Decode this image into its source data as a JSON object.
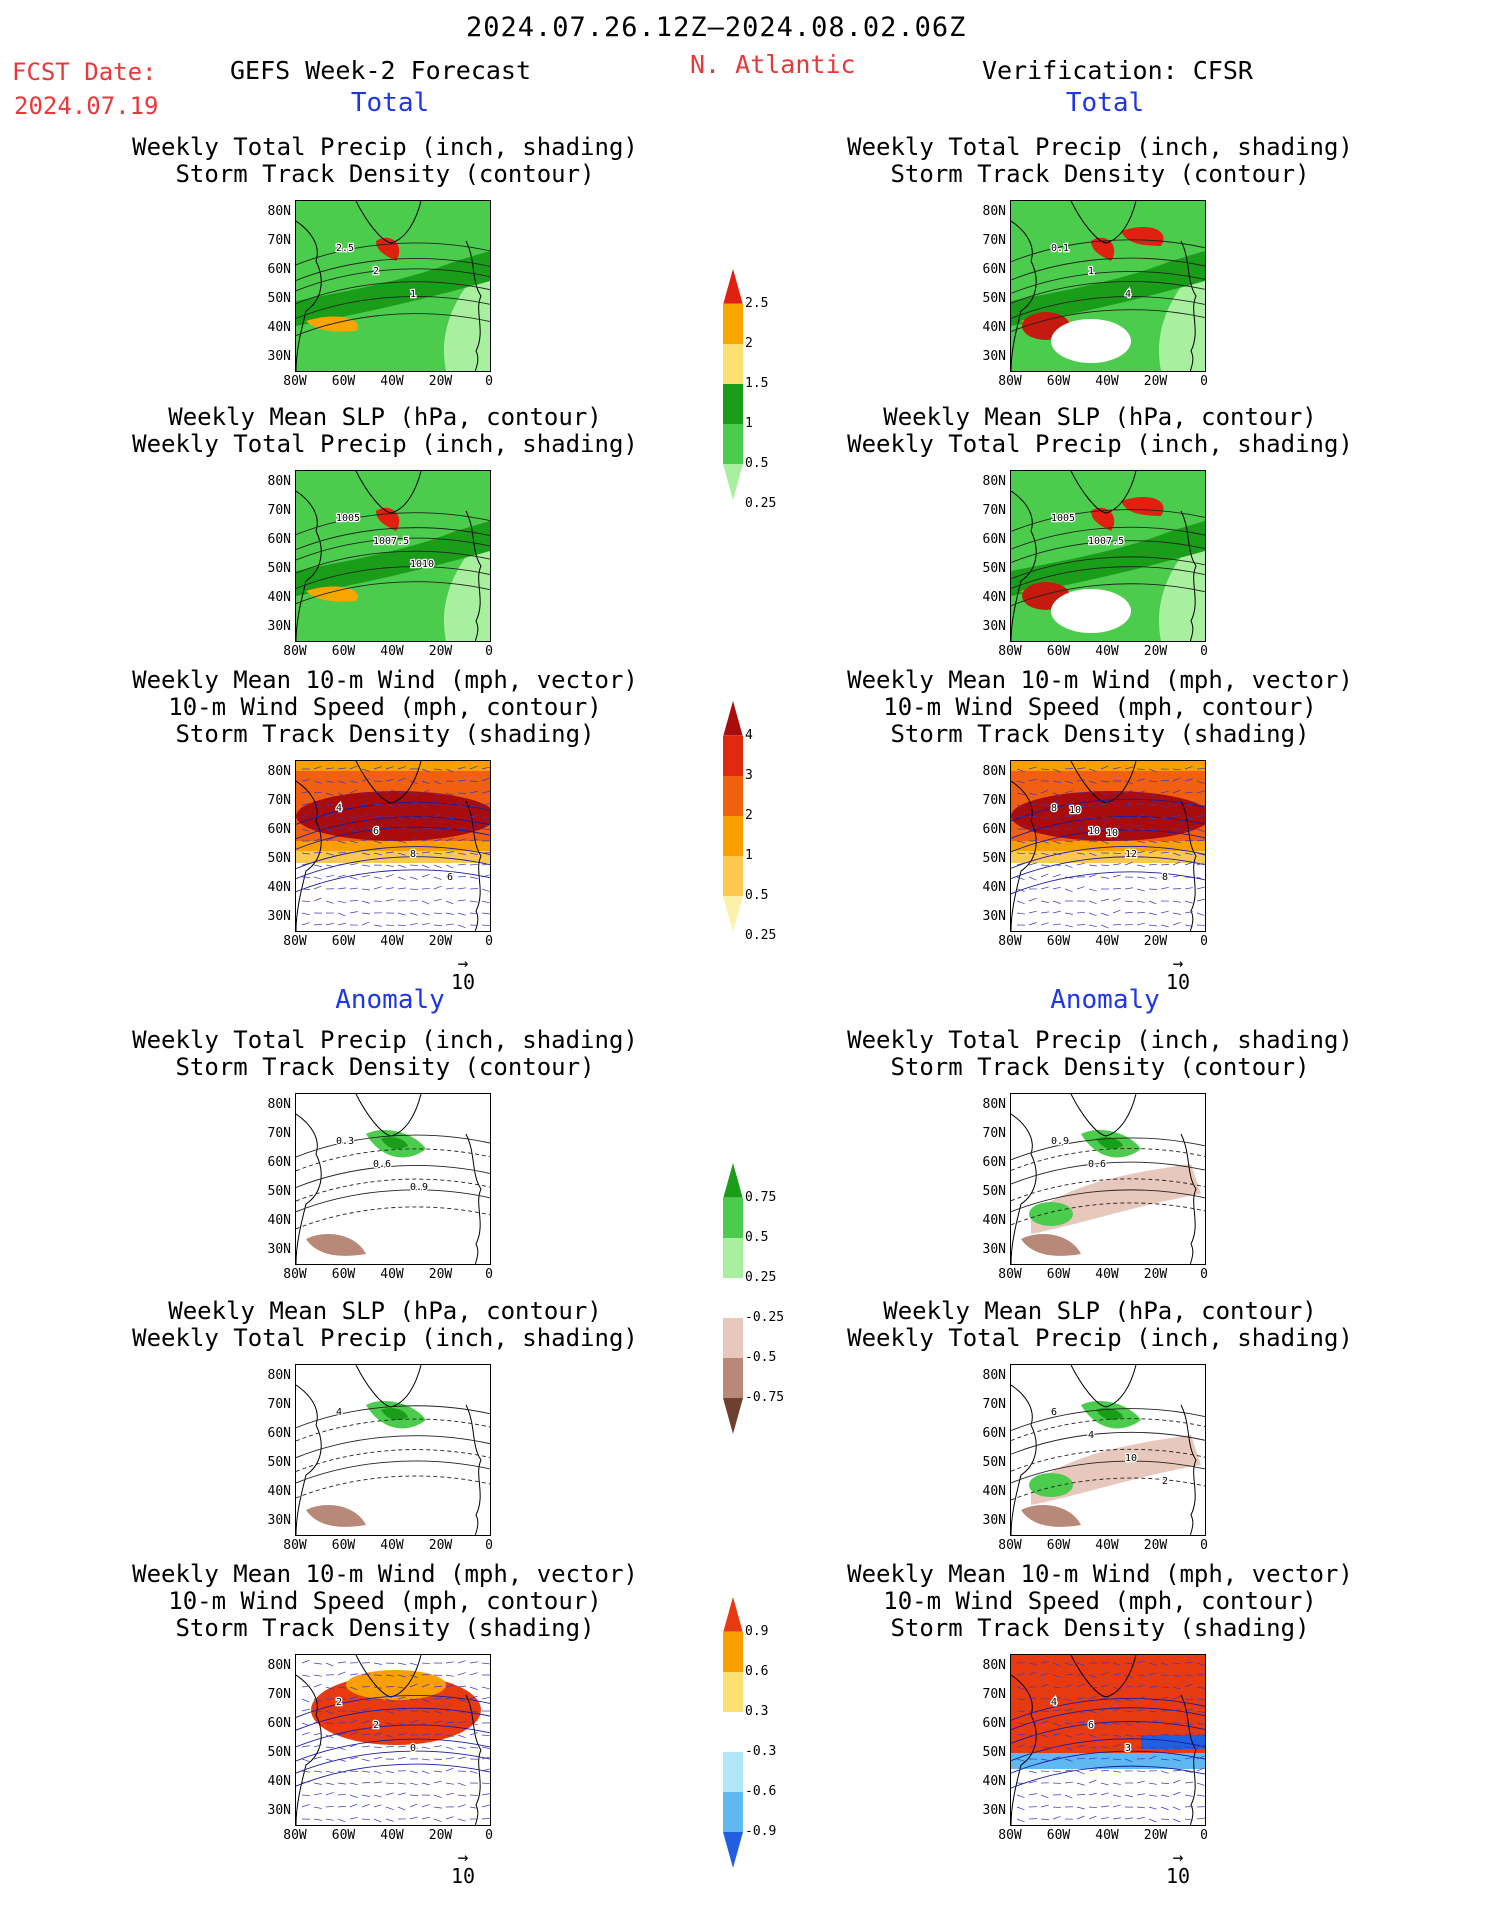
{
  "header": {
    "period": "2024.07.26.12Z–2024.08.02.06Z",
    "fcst_label": "FCST Date:",
    "fcst_date": "2024.07.19",
    "model": "GEFS Week-2 Forecast",
    "region": "N. Atlantic",
    "verification": "Verification: CFSR"
  },
  "sections": {
    "total": "Total",
    "anomaly": "Anomaly"
  },
  "axes": {
    "lat": [
      "80N",
      "70N",
      "60N",
      "50N",
      "40N",
      "30N"
    ],
    "lon": [
      "80W",
      "60W",
      "40W",
      "20W",
      "0"
    ]
  },
  "vector_ref": "10",
  "panels": [
    {
      "id": "f-total-precip",
      "title1": "Weekly Total Precip (inch, shading)",
      "title2": "Storm Track Density (contour)",
      "title3": "",
      "kind": "precip",
      "labels": [
        "2.5",
        "2",
        "1"
      ]
    },
    {
      "id": "v-total-precip",
      "title1": "Weekly Total Precip (inch, shading)",
      "title2": "Storm Track Density (contour)",
      "title3": "",
      "kind": "precip",
      "labels": [
        "0.1",
        "1",
        "4"
      ]
    },
    {
      "id": "f-total-slp",
      "title1": "Weekly Mean SLP (hPa, contour)",
      "title2": "Weekly Total Precip (inch, shading)",
      "title3": "",
      "kind": "precip",
      "labels": [
        "1005",
        "1007.5",
        "1010"
      ]
    },
    {
      "id": "v-total-slp",
      "title1": "Weekly Mean SLP (hPa, contour)",
      "title2": "Weekly Total Precip (inch, shading)",
      "title3": "",
      "kind": "precip",
      "labels": [
        "1005",
        "1007.5"
      ]
    },
    {
      "id": "f-total-wind",
      "title1": "Weekly Mean 10-m Wind (mph, vector)",
      "title2": "10-m Wind Speed (mph, contour)",
      "title3": "Storm Track Density (shading)",
      "kind": "storm",
      "labels": [
        "4",
        "6",
        "8",
        "6"
      ]
    },
    {
      "id": "v-total-wind",
      "title1": "Weekly Mean 10-m Wind (mph, vector)",
      "title2": "10-m Wind Speed (mph, contour)",
      "title3": "Storm Track Density (shading)",
      "kind": "storm",
      "labels": [
        "8",
        "10",
        "12",
        "8",
        "10",
        "10"
      ]
    },
    {
      "id": "f-anom-precip",
      "title1": "Weekly Total Precip (inch, shading)",
      "title2": "Storm Track Density (contour)",
      "title3": "",
      "kind": "panom",
      "labels": [
        "0.3",
        "0.6",
        "0.9"
      ]
    },
    {
      "id": "v-anom-precip",
      "title1": "Weekly Total Precip (inch, shading)",
      "title2": "Storm Track Density (contour)",
      "title3": "",
      "kind": "panom",
      "labels": [
        "0.9",
        "0.6"
      ]
    },
    {
      "id": "f-anom-slp",
      "title1": "Weekly Mean SLP (hPa, contour)",
      "title2": "Weekly Total Precip (inch, shading)",
      "title3": "",
      "kind": "panom",
      "labels": [
        "4"
      ]
    },
    {
      "id": "v-anom-slp",
      "title1": "Weekly Mean SLP (hPa, contour)",
      "title2": "Weekly Total Precip (inch, shading)",
      "title3": "",
      "kind": "panom",
      "labels": [
        "6",
        "4",
        "10",
        "2"
      ]
    },
    {
      "id": "f-anom-wind",
      "title1": "Weekly Mean 10-m Wind (mph, vector)",
      "title2": "10-m Wind Speed (mph, contour)",
      "title3": "Storm Track Density (shading)",
      "kind": "sanom",
      "labels": [
        "2",
        "2",
        "0"
      ]
    },
    {
      "id": "v-anom-wind",
      "title1": "Weekly Mean 10-m Wind (mph, vector)",
      "title2": "10-m Wind Speed (mph, contour)",
      "title3": "Storm Track Density (shading)",
      "kind": "sanom",
      "labels": [
        "4",
        "6",
        "3"
      ]
    }
  ],
  "colorbars": [
    {
      "id": "precip-total",
      "values": [
        "2.5",
        "2",
        "1.5",
        "1",
        "0.5",
        "0.25"
      ],
      "colors": [
        "#e02010",
        "#f9a500",
        "#fde072",
        "#1a9e1a",
        "#4ccc4c",
        "#a8f0a0"
      ]
    },
    {
      "id": "storm-total",
      "values": [
        "4",
        "3",
        "2",
        "1",
        "0.5",
        "0.25"
      ],
      "colors": [
        "#a80c0c",
        "#e02a10",
        "#f06010",
        "#f9a000",
        "#fcc850",
        "#fdf0a8"
      ]
    },
    {
      "id": "precip-anom",
      "values": [
        "0.75",
        "0.5",
        "0.25",
        "-0.25",
        "-0.5",
        "-0.75"
      ],
      "colors": [
        "#1a9e1a",
        "#4ccc4c",
        "#a8f0a0",
        "#ffffff",
        "#e8c8bc",
        "#b88878",
        "#6e4030"
      ]
    },
    {
      "id": "storm-anom",
      "values": [
        "0.9",
        "0.6",
        "0.3",
        "-0.3",
        "-0.6",
        "-0.9"
      ],
      "colors": [
        "#e83a10",
        "#f9a000",
        "#fde072",
        "#ffffff",
        "#b0e8f8",
        "#60b8f0",
        "#2060e0"
      ]
    }
  ]
}
